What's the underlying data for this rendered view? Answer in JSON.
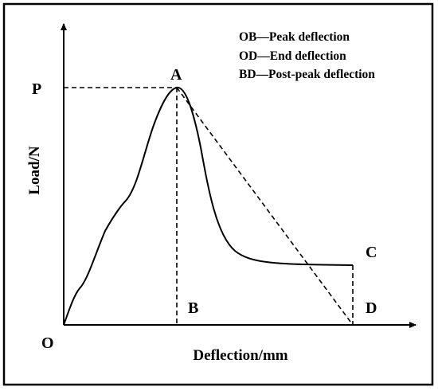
{
  "legend": [
    "OB—Peak deflection",
    "OD—End deflection",
    "BD—Post-peak deflection"
  ],
  "points": {
    "A": "A",
    "B": "B",
    "C": "C",
    "D": "D",
    "O": "O",
    "P": "P"
  },
  "axes": {
    "x_label": "Deflection/mm",
    "y_label": "Load/N"
  },
  "colors": {
    "line": "#000000",
    "background": "#ffffff"
  }
}
